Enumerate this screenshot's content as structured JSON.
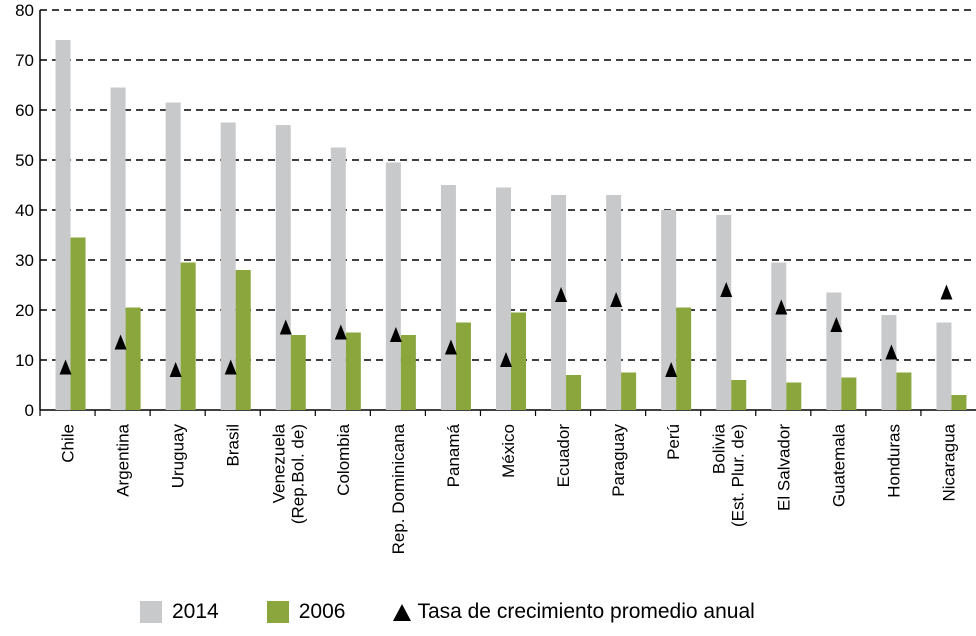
{
  "chart_data": {
    "type": "bar",
    "categories": [
      "Chile",
      "Argentina",
      "Uruguay",
      "Brasil",
      "Venezuela\n(Rep.Bol. de)",
      "Colombia",
      "Rep. Dominicana",
      "Panamá",
      "México",
      "Ecuador",
      "Paraguay",
      "Perú",
      "Bolivia\n(Est. Plur. de)",
      "El Salvador",
      "Guatemala",
      "Honduras",
      "Nicaragua"
    ],
    "series": [
      {
        "name": "2014",
        "type": "bar",
        "color": "#c8c9cb",
        "values": [
          74,
          64.5,
          61.5,
          57.5,
          57,
          52.5,
          49.5,
          45,
          44.5,
          43,
          43,
          40,
          39,
          29.5,
          23.5,
          19,
          17.5
        ]
      },
      {
        "name": "2006",
        "type": "bar",
        "color": "#8aa63c",
        "values": [
          34.5,
          20.5,
          29.5,
          28,
          15,
          15.5,
          15,
          17.5,
          19.5,
          7,
          7.5,
          20.5,
          6,
          5.5,
          6.5,
          7.5,
          3
        ]
      },
      {
        "name": "Tasa de crecimiento promedio anual",
        "type": "marker",
        "marker": "triangle",
        "color": "#000000",
        "values": [
          8.5,
          13.5,
          8,
          8.5,
          16.5,
          15.5,
          15,
          12.5,
          10,
          23,
          22,
          8,
          24,
          20.5,
          17,
          11.5,
          23.5
        ]
      }
    ],
    "y_ticks": [
      0,
      10,
      20,
      30,
      40,
      50,
      60,
      70,
      80
    ],
    "ylim": [
      0,
      80
    ],
    "grid": "horizontal-dashed",
    "legend_position": "bottom"
  }
}
